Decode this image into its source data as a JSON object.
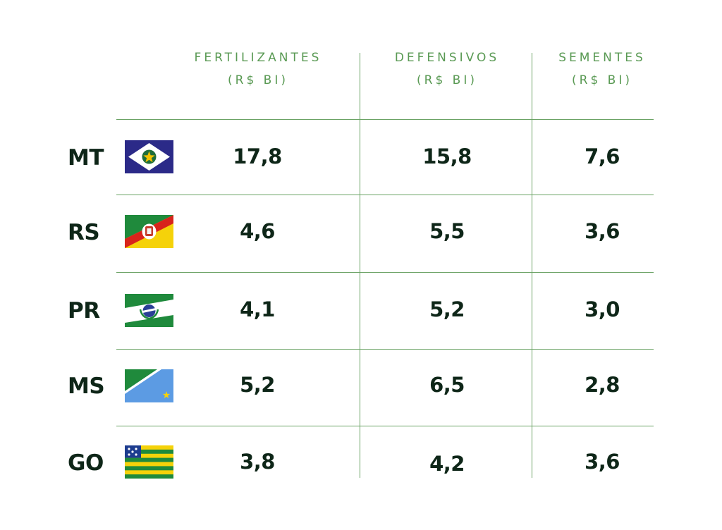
{
  "headers": [
    {
      "title": "FERTILIZANTES",
      "unit": "(R$ BI)"
    },
    {
      "title": "DEFENSIVOS",
      "unit": "(R$ BI)"
    },
    {
      "title": "SEMENTES",
      "unit": "(R$ BI)"
    }
  ],
  "rows": [
    {
      "state": "MT",
      "flag_icon": "mato-grosso-flag-icon",
      "values": [
        "17,8",
        "15,8",
        "7,6"
      ]
    },
    {
      "state": "RS",
      "flag_icon": "rio-grande-do-sul-flag-icon",
      "values": [
        "4,6",
        "5,5",
        "3,6"
      ]
    },
    {
      "state": "PR",
      "flag_icon": "parana-flag-icon",
      "values": [
        "4,1",
        "5,2",
        "3,0"
      ]
    },
    {
      "state": "MS",
      "flag_icon": "mato-grosso-do-sul-flag-icon",
      "values": [
        "5,2",
        "6,5",
        "2,8"
      ]
    },
    {
      "state": "GO",
      "flag_icon": "goias-flag-icon",
      "values": [
        "3,8",
        "4,2",
        "3,6"
      ]
    }
  ],
  "colors": {
    "header_text": "#5a9a54",
    "rule": "#6aa264",
    "body_text": "#0e2618"
  }
}
